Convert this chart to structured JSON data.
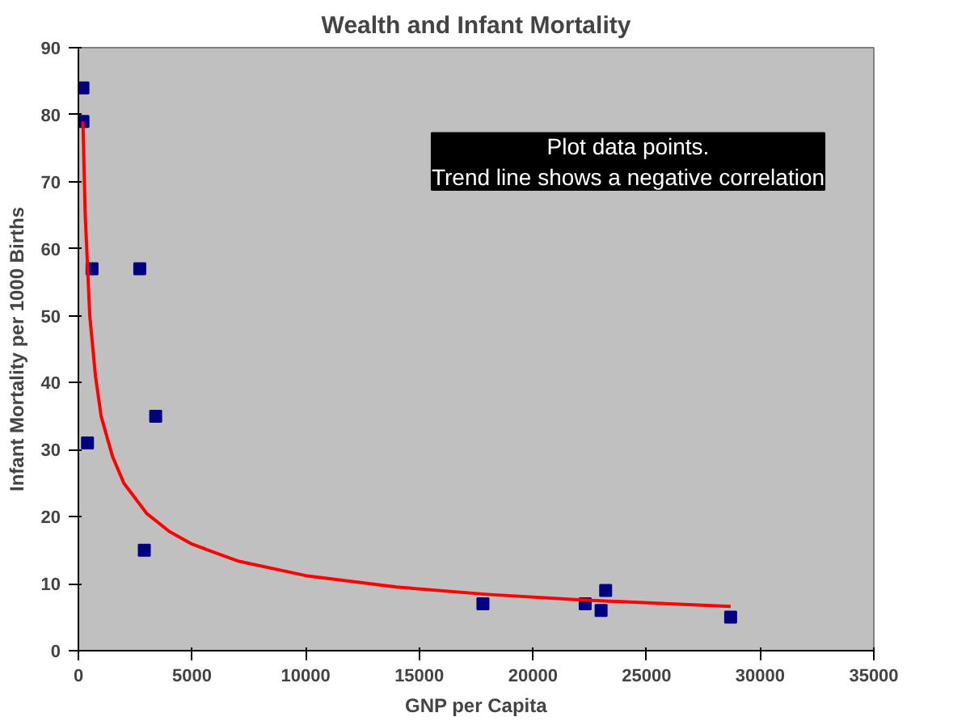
{
  "chart_data": {
    "type": "scatter",
    "title": "Wealth and Infant Mortality",
    "xlabel": "GNP per Capita",
    "ylabel": "Infant Mortality per 1000 Births",
    "annotations": [
      "Plot data points.\nTrend line shows a negative correlation"
    ],
    "series": [
      {
        "color": "#000080",
        "marker": "square",
        "x": [
          200,
          200,
          400,
          600,
          2700,
          2900,
          3400,
          17800,
          22300,
          23000,
          23200,
          28700
        ],
        "values": [
          84,
          79,
          31,
          57,
          57,
          15,
          35,
          7,
          7,
          6,
          9,
          5
        ]
      },
      {
        "type": "line",
        "color": "#ff0000",
        "marker": "none",
        "x": [
          200,
          300,
          500,
          750,
          1000,
          1500,
          2000,
          3000,
          4000,
          5000,
          7000,
          10000,
          14000,
          18000,
          22000,
          26000,
          28700
        ],
        "values": [
          79,
          65,
          50,
          41,
          35,
          29,
          25,
          20.5,
          17.8,
          15.9,
          13.4,
          11.2,
          9.5,
          8.4,
          7.6,
          7.0,
          6.6
        ]
      }
    ],
    "xlim": [
      0,
      35000
    ],
    "xticks": [
      0,
      5000,
      10000,
      15000,
      20000,
      25000,
      30000,
      35000
    ],
    "ylim": [
      0,
      90
    ],
    "yticks": [
      0,
      10,
      20,
      30,
      40,
      50,
      60,
      70,
      80,
      90
    ],
    "grid": false
  }
}
